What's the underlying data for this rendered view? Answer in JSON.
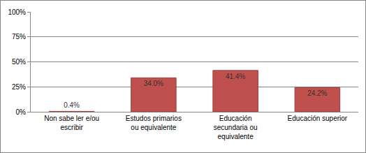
{
  "chart_data": {
    "type": "bar",
    "categories": [
      "Non sabe ler e/ou escribir",
      "Estudos primarios ou equivalente",
      "Educación secundaria ou equivalente",
      "Educación superior"
    ],
    "values": [
      0.4,
      34.0,
      41.4,
      24.2
    ],
    "value_labels": [
      "0.4%",
      "34.0%",
      "41.4%",
      "24.2%"
    ],
    "color": "#c0504d",
    "ylim": [
      0,
      100
    ],
    "yticks": [
      {
        "value": 0,
        "label": "0%"
      },
      {
        "value": 25,
        "label": "25%"
      },
      {
        "value": 50,
        "label": "50%"
      },
      {
        "value": 75,
        "label": "75%"
      },
      {
        "value": 100,
        "label": "100%"
      }
    ],
    "grid": true,
    "data_labels": true
  }
}
